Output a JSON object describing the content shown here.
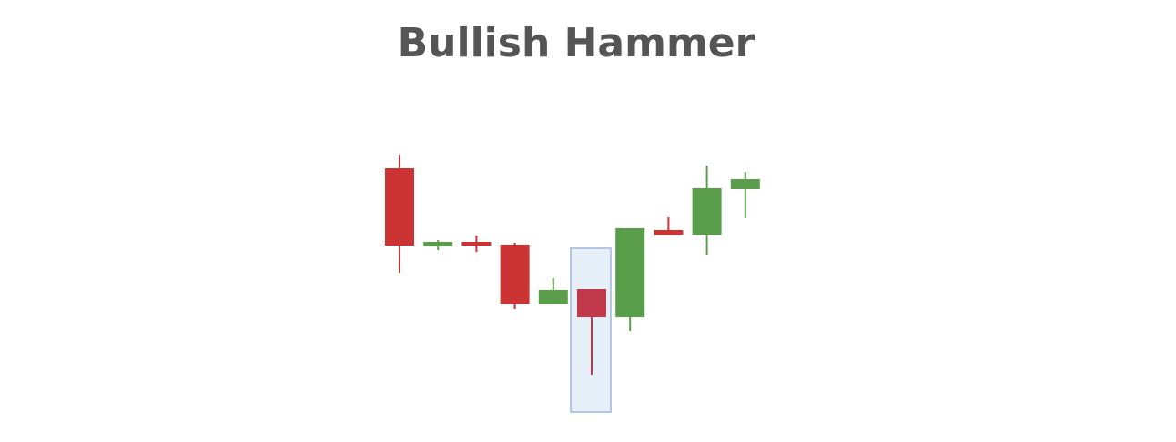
{
  "chart_data": {
    "type": "candlestick",
    "title": "Bullish Hammer",
    "open": [
      275,
      189,
      194,
      191,
      126,
      142,
      111,
      207,
      202,
      252
    ],
    "high": [
      290,
      196,
      201,
      193,
      154,
      142,
      209,
      221,
      278,
      271
    ],
    "low": [
      160,
      185,
      183,
      120,
      126,
      48,
      96,
      202,
      180,
      220
    ],
    "close": [
      190,
      194,
      190,
      126,
      141,
      111,
      209,
      202,
      253,
      263
    ],
    "ylim": [
      0,
      320
    ],
    "up_color": "#5a9e4b",
    "down_color": "#cc3333",
    "highlight": 5,
    "highlight_color": "#c0394a"
  }
}
